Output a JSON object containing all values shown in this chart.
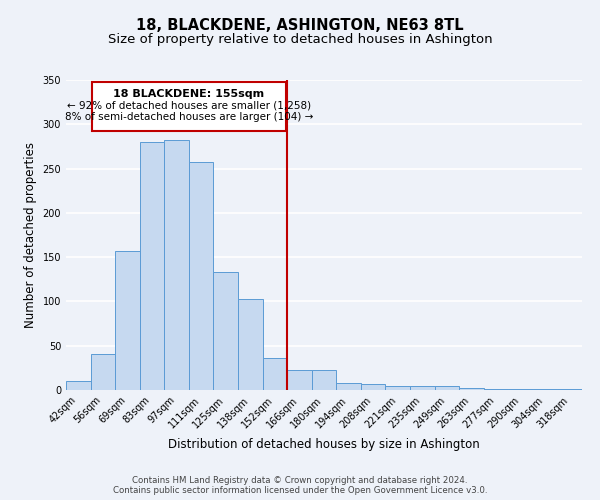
{
  "title": "18, BLACKDENE, ASHINGTON, NE63 8TL",
  "subtitle": "Size of property relative to detached houses in Ashington",
  "xlabel": "Distribution of detached houses by size in Ashington",
  "ylabel": "Number of detached properties",
  "bar_labels": [
    "42sqm",
    "56sqm",
    "69sqm",
    "83sqm",
    "97sqm",
    "111sqm",
    "125sqm",
    "138sqm",
    "152sqm",
    "166sqm",
    "180sqm",
    "194sqm",
    "208sqm",
    "221sqm",
    "235sqm",
    "249sqm",
    "263sqm",
    "277sqm",
    "290sqm",
    "304sqm",
    "318sqm"
  ],
  "bar_values": [
    10,
    41,
    157,
    280,
    282,
    257,
    133,
    103,
    36,
    23,
    23,
    8,
    7,
    5,
    4,
    4,
    2,
    1,
    1,
    1,
    1
  ],
  "bar_color": "#c6d9f0",
  "bar_edge_color": "#5b9bd5",
  "property_line_label": "18 BLACKDENE: 155sqm",
  "annotation_line1": "← 92% of detached houses are smaller (1,258)",
  "annotation_line2": "8% of semi-detached houses are larger (104) →",
  "annotation_box_edge": "#c00000",
  "ylim": [
    0,
    350
  ],
  "yticks": [
    0,
    50,
    100,
    150,
    200,
    250,
    300,
    350
  ],
  "footer_line1": "Contains HM Land Registry data © Crown copyright and database right 2024.",
  "footer_line2": "Contains public sector information licensed under the Open Government Licence v3.0.",
  "background_color": "#eef2f9",
  "grid_color": "#ffffff",
  "title_fontsize": 10.5,
  "subtitle_fontsize": 9.5,
  "axis_label_fontsize": 8.5,
  "tick_fontsize": 7,
  "footer_fontsize": 6.2
}
